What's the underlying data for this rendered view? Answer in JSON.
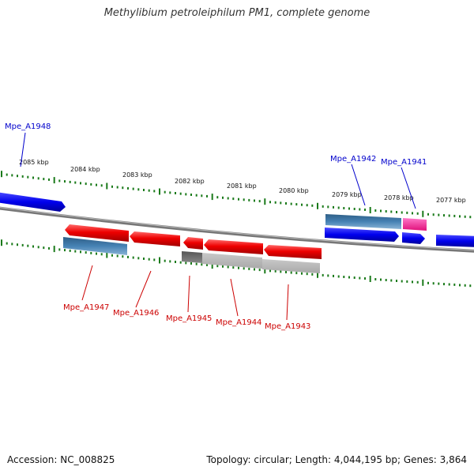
{
  "title": "Methylibium petroleiphilum PM1, complete genome",
  "accession": "Accession: NC_008825",
  "topology": "Topology: circular; Length: 4,044,195 bp; Genes: 3,864",
  "ruler_ticks": [
    "2085 kbp",
    "2084 kbp",
    "2083 kbp",
    "2082 kbp",
    "2081 kbp",
    "2080 kbp",
    "2079 kbp",
    "2078 kbp",
    "2077 kbp"
  ],
  "genes_top": [
    "Mpe_A1948",
    "Mpe_A1942",
    "Mpe_A1941"
  ],
  "genes_bottom": [
    "Mpe_A1947",
    "Mpe_A1946",
    "Mpe_A1945",
    "Mpe_A1944",
    "Mpe_A1943"
  ],
  "colors": {
    "forward_cds": "#0000ee",
    "reverse_cds": "#ee0000",
    "rna": "#ff2299",
    "gene_bar": "#4682b4",
    "pseudo_dark": "#666666",
    "pseudo_light": "#bbbbbb",
    "tick": "#1a7a1a",
    "backbone": "#777777"
  }
}
